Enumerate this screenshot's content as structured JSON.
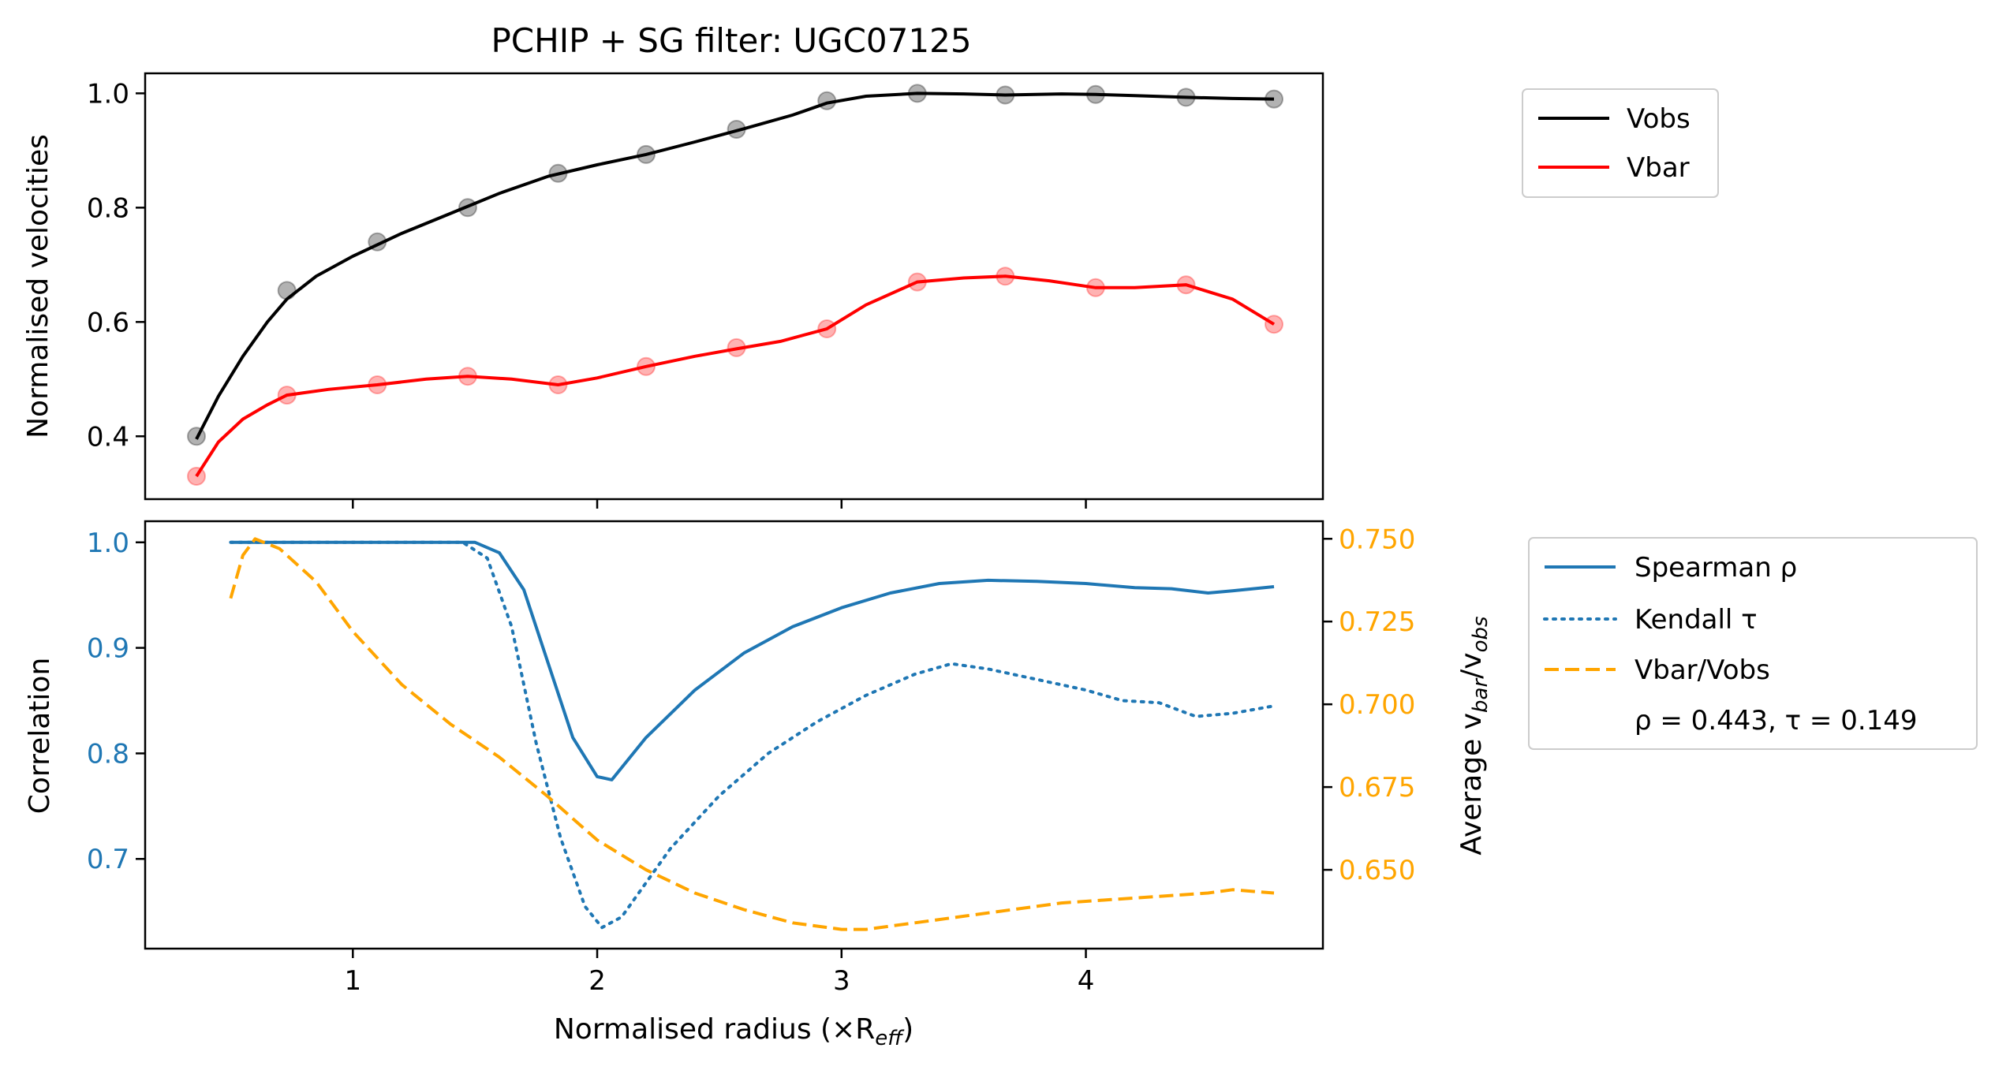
{
  "chart_data": [
    {
      "type": "scatter",
      "panel": "top",
      "title": "PCHIP + SG filter: UGC07125",
      "xlabel": "",
      "ylabel": "Normalised velocities",
      "xlim": [
        0.15,
        4.97
      ],
      "ylim": [
        0.29,
        1.035
      ],
      "yticks": [
        0.4,
        0.6,
        0.8,
        1.0
      ],
      "ytick_labels": [
        "0.4",
        "0.6",
        "0.8",
        "1.0"
      ],
      "legend_position": "outside-right",
      "series": [
        {
          "name": "Vobs",
          "color": "#000000",
          "points_x": [
            0.36,
            0.73,
            1.1,
            1.47,
            1.84,
            2.2,
            2.57,
            2.94,
            3.31,
            3.67,
            4.04,
            4.41,
            4.77
          ],
          "points_y": [
            0.4,
            0.655,
            0.74,
            0.8,
            0.86,
            0.893,
            0.937,
            0.987,
            1.0,
            0.997,
            0.998,
            0.993,
            0.99
          ],
          "curve_x": [
            0.36,
            0.45,
            0.55,
            0.65,
            0.73,
            0.85,
            1.0,
            1.2,
            1.4,
            1.6,
            1.8,
            2.0,
            2.2,
            2.4,
            2.6,
            2.8,
            2.94,
            3.1,
            3.31,
            3.5,
            3.67,
            3.9,
            4.04,
            4.2,
            4.41,
            4.6,
            4.77
          ],
          "curve_y": [
            0.395,
            0.47,
            0.54,
            0.6,
            0.64,
            0.68,
            0.715,
            0.755,
            0.79,
            0.825,
            0.855,
            0.875,
            0.893,
            0.915,
            0.938,
            0.962,
            0.983,
            0.995,
            1.0,
            0.999,
            0.997,
            0.999,
            0.998,
            0.996,
            0.993,
            0.991,
            0.99
          ]
        },
        {
          "name": "Vbar",
          "color": "#ff0000",
          "points_x": [
            0.36,
            0.73,
            1.1,
            1.47,
            1.84,
            2.2,
            2.57,
            2.94,
            3.31,
            3.67,
            4.04,
            4.41,
            4.77
          ],
          "points_y": [
            0.33,
            0.472,
            0.49,
            0.505,
            0.49,
            0.522,
            0.555,
            0.588,
            0.67,
            0.68,
            0.66,
            0.665,
            0.596
          ],
          "curve_x": [
            0.36,
            0.45,
            0.55,
            0.65,
            0.73,
            0.9,
            1.1,
            1.3,
            1.47,
            1.65,
            1.84,
            2.0,
            2.2,
            2.4,
            2.57,
            2.75,
            2.94,
            3.1,
            3.31,
            3.5,
            3.67,
            3.85,
            4.04,
            4.2,
            4.41,
            4.6,
            4.77
          ],
          "curve_y": [
            0.33,
            0.39,
            0.43,
            0.455,
            0.472,
            0.482,
            0.49,
            0.5,
            0.505,
            0.5,
            0.49,
            0.502,
            0.522,
            0.54,
            0.553,
            0.566,
            0.588,
            0.63,
            0.67,
            0.677,
            0.68,
            0.672,
            0.66,
            0.66,
            0.665,
            0.64,
            0.596
          ]
        }
      ]
    },
    {
      "type": "line",
      "panel": "bottom",
      "xlabel": "Normalised radius (×R",
      "xlabel_sub": "eff",
      "xlabel_close": ")",
      "ylabel": "Correlation",
      "ylabel_right_prefix": "Average v",
      "ylabel_right_sub1": "bar",
      "ylabel_right_mid": "/v",
      "ylabel_right_sub2": "obs",
      "xlim": [
        0.15,
        4.97
      ],
      "xticks": [
        1,
        2,
        3,
        4
      ],
      "xtick_labels": [
        "1",
        "2",
        "3",
        "4"
      ],
      "ylim": [
        0.615,
        1.02
      ],
      "yticks": [
        0.7,
        0.8,
        0.9,
        1.0
      ],
      "ytick_labels": [
        "0.7",
        "0.8",
        "0.9",
        "1.0"
      ],
      "ylim_right": [
        0.6262,
        0.7553
      ],
      "yticks_right": [
        0.65,
        0.675,
        0.7,
        0.725,
        0.75
      ],
      "ytick_labels_right": [
        "0.650",
        "0.675",
        "0.700",
        "0.725",
        "0.750"
      ],
      "left_axis_color": "#1f77b4",
      "right_axis_color": "#ffa500",
      "legend_position": "outside-right",
      "annotation": "ρ = 0.443, τ = 0.149",
      "series": [
        {
          "name": "Spearman ρ",
          "color": "#1f77b4",
          "style": "solid",
          "axis": "left",
          "x": [
            0.5,
            0.8,
            1.2,
            1.5,
            1.6,
            1.7,
            1.8,
            1.9,
            2.0,
            2.06,
            2.2,
            2.4,
            2.6,
            2.8,
            3.0,
            3.2,
            3.4,
            3.6,
            3.8,
            4.0,
            4.2,
            4.35,
            4.5,
            4.6,
            4.77
          ],
          "y": [
            1.0,
            1.0,
            1.0,
            1.0,
            0.99,
            0.955,
            0.885,
            0.815,
            0.778,
            0.775,
            0.815,
            0.86,
            0.895,
            0.92,
            0.938,
            0.952,
            0.961,
            0.964,
            0.963,
            0.961,
            0.957,
            0.956,
            0.952,
            0.954,
            0.958
          ]
        },
        {
          "name": "Kendall τ",
          "color": "#1f77b4",
          "style": "dotted",
          "axis": "left",
          "x": [
            0.5,
            0.8,
            1.2,
            1.45,
            1.55,
            1.65,
            1.75,
            1.85,
            1.95,
            2.02,
            2.1,
            2.3,
            2.5,
            2.7,
            2.9,
            3.1,
            3.3,
            3.45,
            3.6,
            3.8,
            4.0,
            4.15,
            4.3,
            4.45,
            4.6,
            4.77
          ],
          "y": [
            1.0,
            1.0,
            1.0,
            1.0,
            0.985,
            0.92,
            0.81,
            0.72,
            0.655,
            0.635,
            0.645,
            0.71,
            0.76,
            0.8,
            0.83,
            0.855,
            0.875,
            0.885,
            0.88,
            0.87,
            0.86,
            0.85,
            0.848,
            0.835,
            0.838,
            0.845
          ]
        },
        {
          "name": "Vbar/Vobs",
          "color": "#ffa500",
          "style": "dashed",
          "axis": "right",
          "x": [
            0.5,
            0.55,
            0.6,
            0.7,
            0.85,
            1.0,
            1.2,
            1.4,
            1.6,
            1.8,
            2.0,
            2.2,
            2.4,
            2.6,
            2.8,
            3.0,
            3.1,
            3.3,
            3.5,
            3.7,
            3.9,
            4.1,
            4.3,
            4.5,
            4.6,
            4.77
          ],
          "y": [
            0.732,
            0.745,
            0.75,
            0.747,
            0.737,
            0.722,
            0.706,
            0.694,
            0.684,
            0.672,
            0.659,
            0.65,
            0.643,
            0.638,
            0.634,
            0.632,
            0.632,
            0.634,
            0.636,
            0.638,
            0.64,
            0.641,
            0.642,
            0.643,
            0.644,
            0.643
          ]
        }
      ]
    }
  ]
}
